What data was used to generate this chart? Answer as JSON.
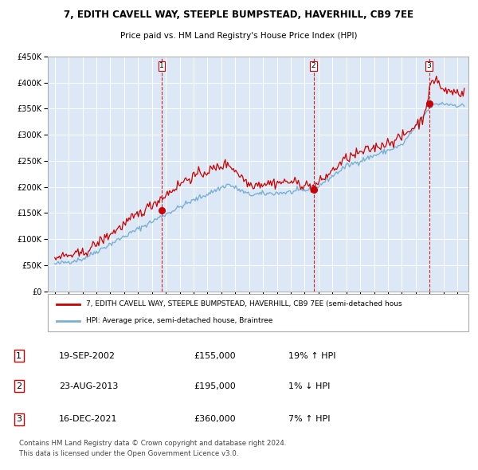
{
  "title": "7, EDITH CAVELL WAY, STEEPLE BUMPSTEAD, HAVERHILL, CB9 7EE",
  "subtitle": "Price paid vs. HM Land Registry's House Price Index (HPI)",
  "legend_line1": "7, EDITH CAVELL WAY, STEEPLE BUMPSTEAD, HAVERHILL, CB9 7EE (semi-detached hous",
  "legend_line2": "HPI: Average price, semi-detached house, Braintree",
  "footer1": "Contains HM Land Registry data © Crown copyright and database right 2024.",
  "footer2": "This data is licensed under the Open Government Licence v3.0.",
  "sales": [
    {
      "label": "1",
      "date": "19-SEP-2002",
      "price": 155000,
      "hpi_diff": "19% ↑ HPI",
      "x_year": 2002.72
    },
    {
      "label": "2",
      "date": "23-AUG-2013",
      "price": 195000,
      "hpi_diff": "1% ↓ HPI",
      "x_year": 2013.64
    },
    {
      "label": "3",
      "date": "16-DEC-2021",
      "price": 360000,
      "hpi_diff": "7% ↑ HPI",
      "x_year": 2021.96
    }
  ],
  "bg_color": "#dce8f5",
  "red_line_color": "#cc0000",
  "blue_line_color": "#7ab0d4",
  "sale_dot_color": "#cc0000",
  "vline_color": "#cc0000",
  "grid_color": "#ffffff",
  "border_color": "#aaaaaa",
  "ylim": [
    0,
    450000
  ],
  "yticks": [
    0,
    50000,
    100000,
    150000,
    200000,
    250000,
    300000,
    350000,
    400000,
    450000
  ],
  "xlim_start": 1994.5,
  "xlim_end": 2024.8,
  "xtick_years": [
    1995,
    1996,
    1997,
    1998,
    1999,
    2000,
    2001,
    2002,
    2003,
    2004,
    2005,
    2006,
    2007,
    2008,
    2009,
    2010,
    2011,
    2012,
    2013,
    2014,
    2015,
    2016,
    2017,
    2018,
    2019,
    2020,
    2021,
    2022,
    2023,
    2024
  ]
}
